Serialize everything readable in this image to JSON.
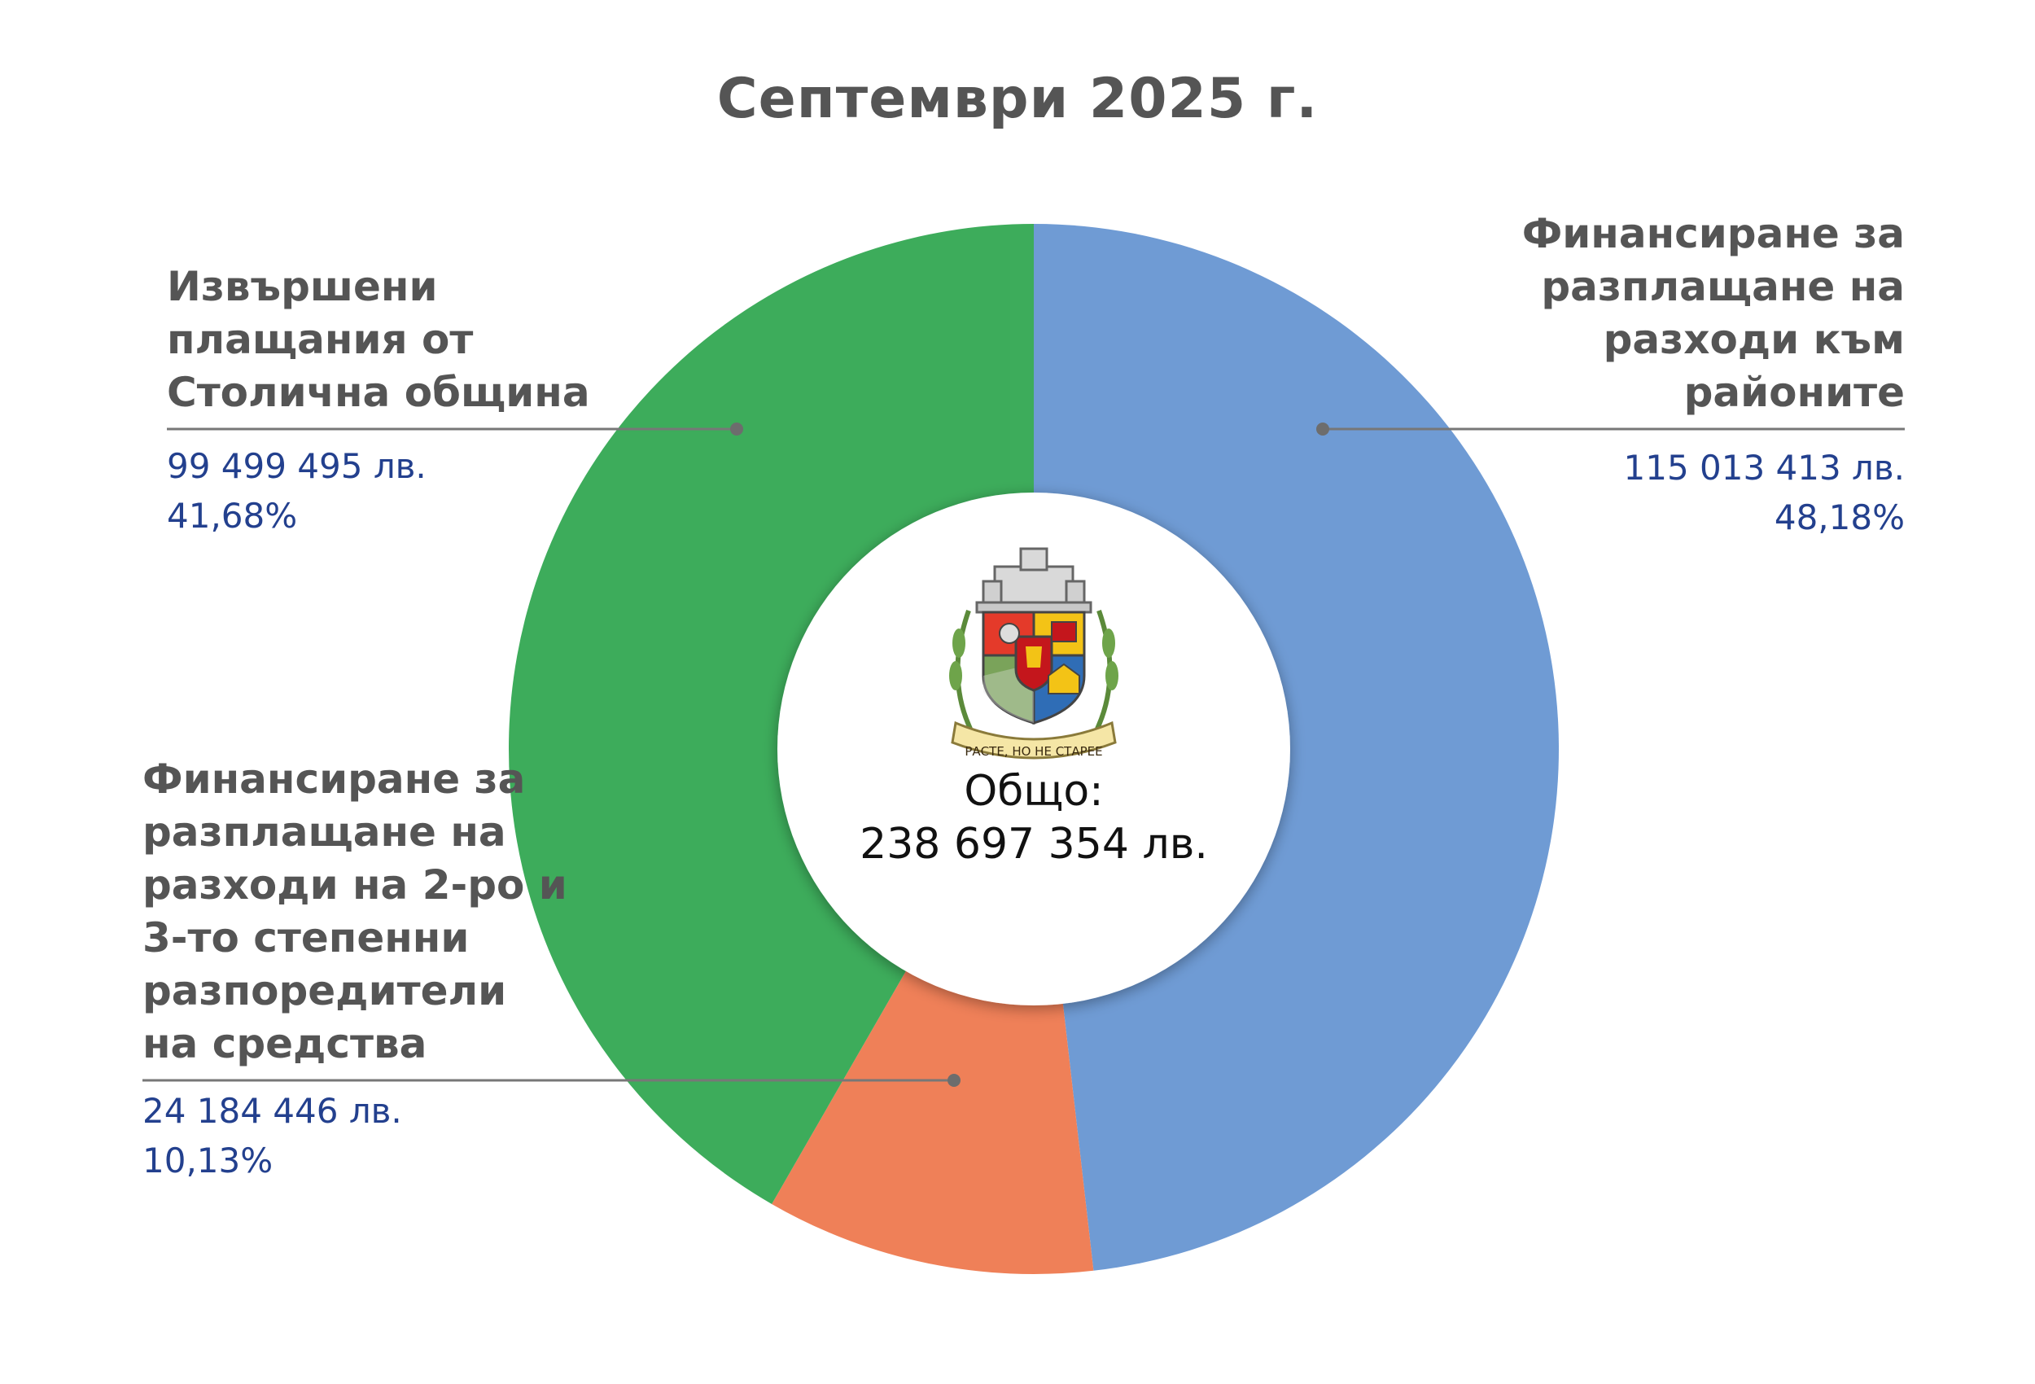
{
  "chart_data": {
    "type": "pie",
    "title": "Септември 2025 г.",
    "center_label": "Общо:",
    "center_value": "238 697 354 лв.",
    "slices": [
      {
        "label": "Финансиране за разплащане на разходи към районите",
        "amount": 115013413,
        "amount_text": "115 013 413 лв.",
        "percent": 48.18,
        "percent_text": "48,18%",
        "color": "#6f9bd4"
      },
      {
        "label": "Финансиране за разплащане на разходи на 2-ро и 3-то степенни разпоредители на средства",
        "amount": 24184446,
        "amount_text": "24 184 446 лв.",
        "percent": 10.13,
        "percent_text": "10,13%",
        "color": "#ef8058"
      },
      {
        "label": "Извършени плащания от Столична община",
        "amount": 99499495,
        "amount_text": "99 499 495 лв.",
        "percent": 41.68,
        "percent_text": "41,68%",
        "color": "#3dac5b"
      }
    ],
    "legend": "callouts"
  },
  "labels": {
    "districts": [
      "Финансиране за",
      "разплащане на",
      "разходи към",
      "районите"
    ],
    "secondary": [
      "Финансиране за",
      "разплащане на",
      "разходи на 2-ро и",
      "3-то степенни",
      "разпоредители",
      "на средства"
    ],
    "municipality": [
      "Извършени",
      "плащания от",
      "Столична община"
    ]
  },
  "emblem": {
    "motto": "РАСТЕ, НО НЕ СТАРЕЕ",
    "icon": "sofia-coat-of-arms"
  }
}
